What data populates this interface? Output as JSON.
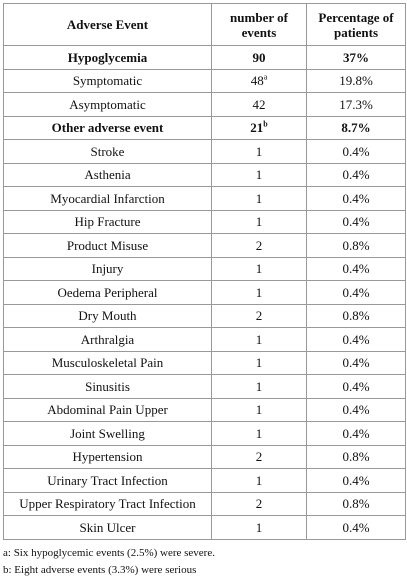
{
  "table": {
    "headers": [
      "Adverse Event",
      "number of events",
      "Percentage of patients"
    ],
    "rows": [
      {
        "event": "Hypoglycemia",
        "events": "90",
        "sup": "",
        "percentage": "37%"
      },
      {
        "event": "Symptomatic",
        "events": "48",
        "sup": "a",
        "percentage": "19.8%"
      },
      {
        "event": "Asymptomatic",
        "events": "42",
        "sup": "",
        "percentage": "17.3%"
      },
      {
        "event": "Other adverse event",
        "events": "21",
        "sup": "b",
        "percentage": "8.7%"
      },
      {
        "event": "Stroke",
        "events": "1",
        "sup": "",
        "percentage": "0.4%"
      },
      {
        "event": "Asthenia",
        "events": "1",
        "sup": "",
        "percentage": "0.4%"
      },
      {
        "event": "Myocardial Infarction",
        "events": "1",
        "sup": "",
        "percentage": "0.4%"
      },
      {
        "event": "Hip Fracture",
        "events": "1",
        "sup": "",
        "percentage": "0.4%"
      },
      {
        "event": "Product Misuse",
        "events": "2",
        "sup": "",
        "percentage": "0.8%"
      },
      {
        "event": "Injury",
        "events": "1",
        "sup": "",
        "percentage": "0.4%"
      },
      {
        "event": "Oedema Peripheral",
        "events": "1",
        "sup": "",
        "percentage": "0.4%"
      },
      {
        "event": "Dry Mouth",
        "events": "2",
        "sup": "",
        "percentage": "0.8%"
      },
      {
        "event": "Arthralgia",
        "events": "1",
        "sup": "",
        "percentage": "0.4%"
      },
      {
        "event": "Musculoskeletal Pain",
        "events": "1",
        "sup": "",
        "percentage": "0.4%"
      },
      {
        "event": "Sinusitis",
        "events": "1",
        "sup": "",
        "percentage": "0.4%"
      },
      {
        "event": "Abdominal Pain Upper",
        "events": "1",
        "sup": "",
        "percentage": "0.4%"
      },
      {
        "event": "Joint Swelling",
        "events": "1",
        "sup": "",
        "percentage": "0.4%"
      },
      {
        "event": "Hypertension",
        "events": "2",
        "sup": "",
        "percentage": "0.8%"
      },
      {
        "event": "Urinary Tract Infection",
        "events": "1",
        "sup": "",
        "percentage": "0.4%"
      },
      {
        "event": "Upper Respiratory Tract Infection",
        "events": "2",
        "sup": "",
        "percentage": "0.8%"
      },
      {
        "event": "Skin Ulcer",
        "events": "1",
        "sup": "",
        "percentage": "0.4%"
      }
    ]
  },
  "footnotes": [
    "a: Six hypoglycemic events (2.5%) were severe.",
    "b: Eight adverse events (3.3%) were serious"
  ]
}
